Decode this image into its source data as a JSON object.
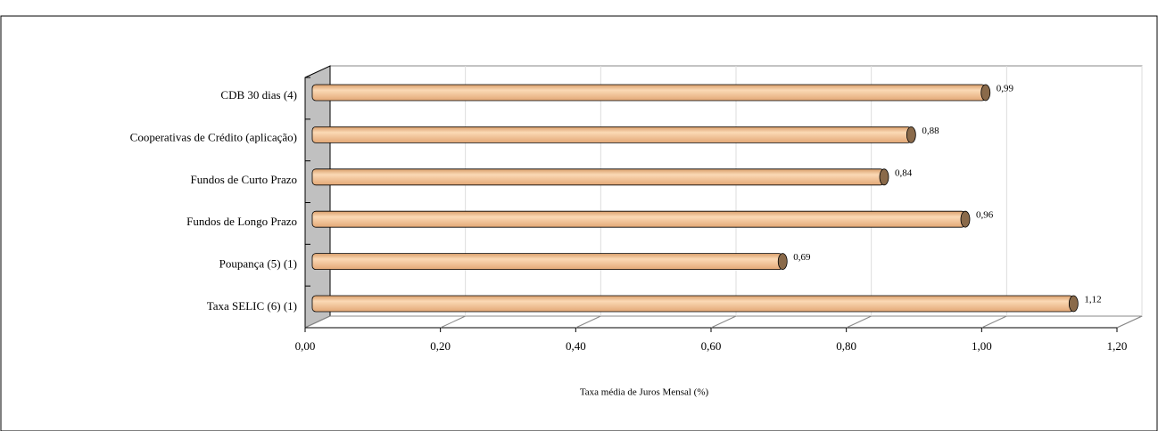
{
  "chart_data": {
    "type": "bar",
    "orientation": "horizontal",
    "x_label": "Taxa média de Juros Mensal (%)",
    "categories": [
      "CDB 30 dias (4)",
      "Cooperativas de Crédito (aplicação)",
      "Fundos de Curto Prazo",
      "Fundos de Longo Prazo",
      "Poupança (5) (1)",
      "Taxa SELIC (6) (1)"
    ],
    "values": [
      0.99,
      0.88,
      0.84,
      0.96,
      0.69,
      1.12
    ],
    "value_labels": [
      "0,99",
      "0,88",
      "0,84",
      "0,96",
      "0,69",
      "1,12"
    ],
    "color": "#f3bf8c",
    "xlim": [
      0,
      1.2
    ],
    "xticks": [
      {
        "value": 0,
        "label": "0,00"
      },
      {
        "value": 0.2,
        "label": "0,20"
      },
      {
        "value": 0.4,
        "label": "0,40"
      },
      {
        "value": 0.6,
        "label": "0,60"
      },
      {
        "value": 0.8,
        "label": "0,80"
      },
      {
        "value": 1.0,
        "label": "1,00"
      },
      {
        "value": 1.2,
        "label": "1,20"
      }
    ],
    "grid": true
  }
}
